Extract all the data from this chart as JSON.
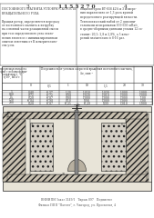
{
  "bg_color": "#f5f5f0",
  "page_color": "#ffffff",
  "title_text": "1 1 5 3 2 7 0",
  "col1_header": "Измеряемая вязкость нефти с добавкой присадки при t, °С\nη·10³, мПа·с",
  "col2_header": "Погрешность от угловых скоростей вращения постоянного магнита, Δν, мин⁻¹",
  "col2_subheaders": [
    "0",
    "0,5",
    "1",
    "10",
    "1,5",
    "20",
    "30"
  ],
  "rows": [
    [
      "5",
      "0,48",
      "-0,37",
      "1,20",
      "1,050",
      "1,030",
      "1,000",
      "1,000"
    ],
    [
      "100",
      "0,72",
      "-0,72",
      "0,98",
      "1,020",
      "1,010",
      "1,000",
      "1,000"
    ],
    [
      "15",
      "0,28",
      "-0,87",
      "0,08",
      "1,000",
      "1,000",
      "1,000",
      "1,00"
    ],
    [
      "120",
      "-0,84",
      "-0,98",
      "0,10",
      "0,98",
      "1,000",
      "1,000",
      "1,00"
    ],
    [
      "200",
      "0,28",
      "-0,87",
      "-0,25",
      "-0,29",
      "0,99",
      "1,010",
      "1,000"
    ]
  ],
  "left_col_label": "3",
  "left_col2_label": "4",
  "bottom_label1": "ВНИИПИ Заказ 3149/1   Тираж 897   Подписное",
  "bottom_label2": "Филиал ППП \"Патент\", г. Ужгород, ул. Проектная, 4",
  "drawing_bg": "#e8e4d8",
  "drawing_hatch_color": "#888888",
  "line_color": "#222222",
  "text_color": "#333333",
  "small_font": 3.2,
  "header_font": 3.5,
  "title_font": 5.0
}
